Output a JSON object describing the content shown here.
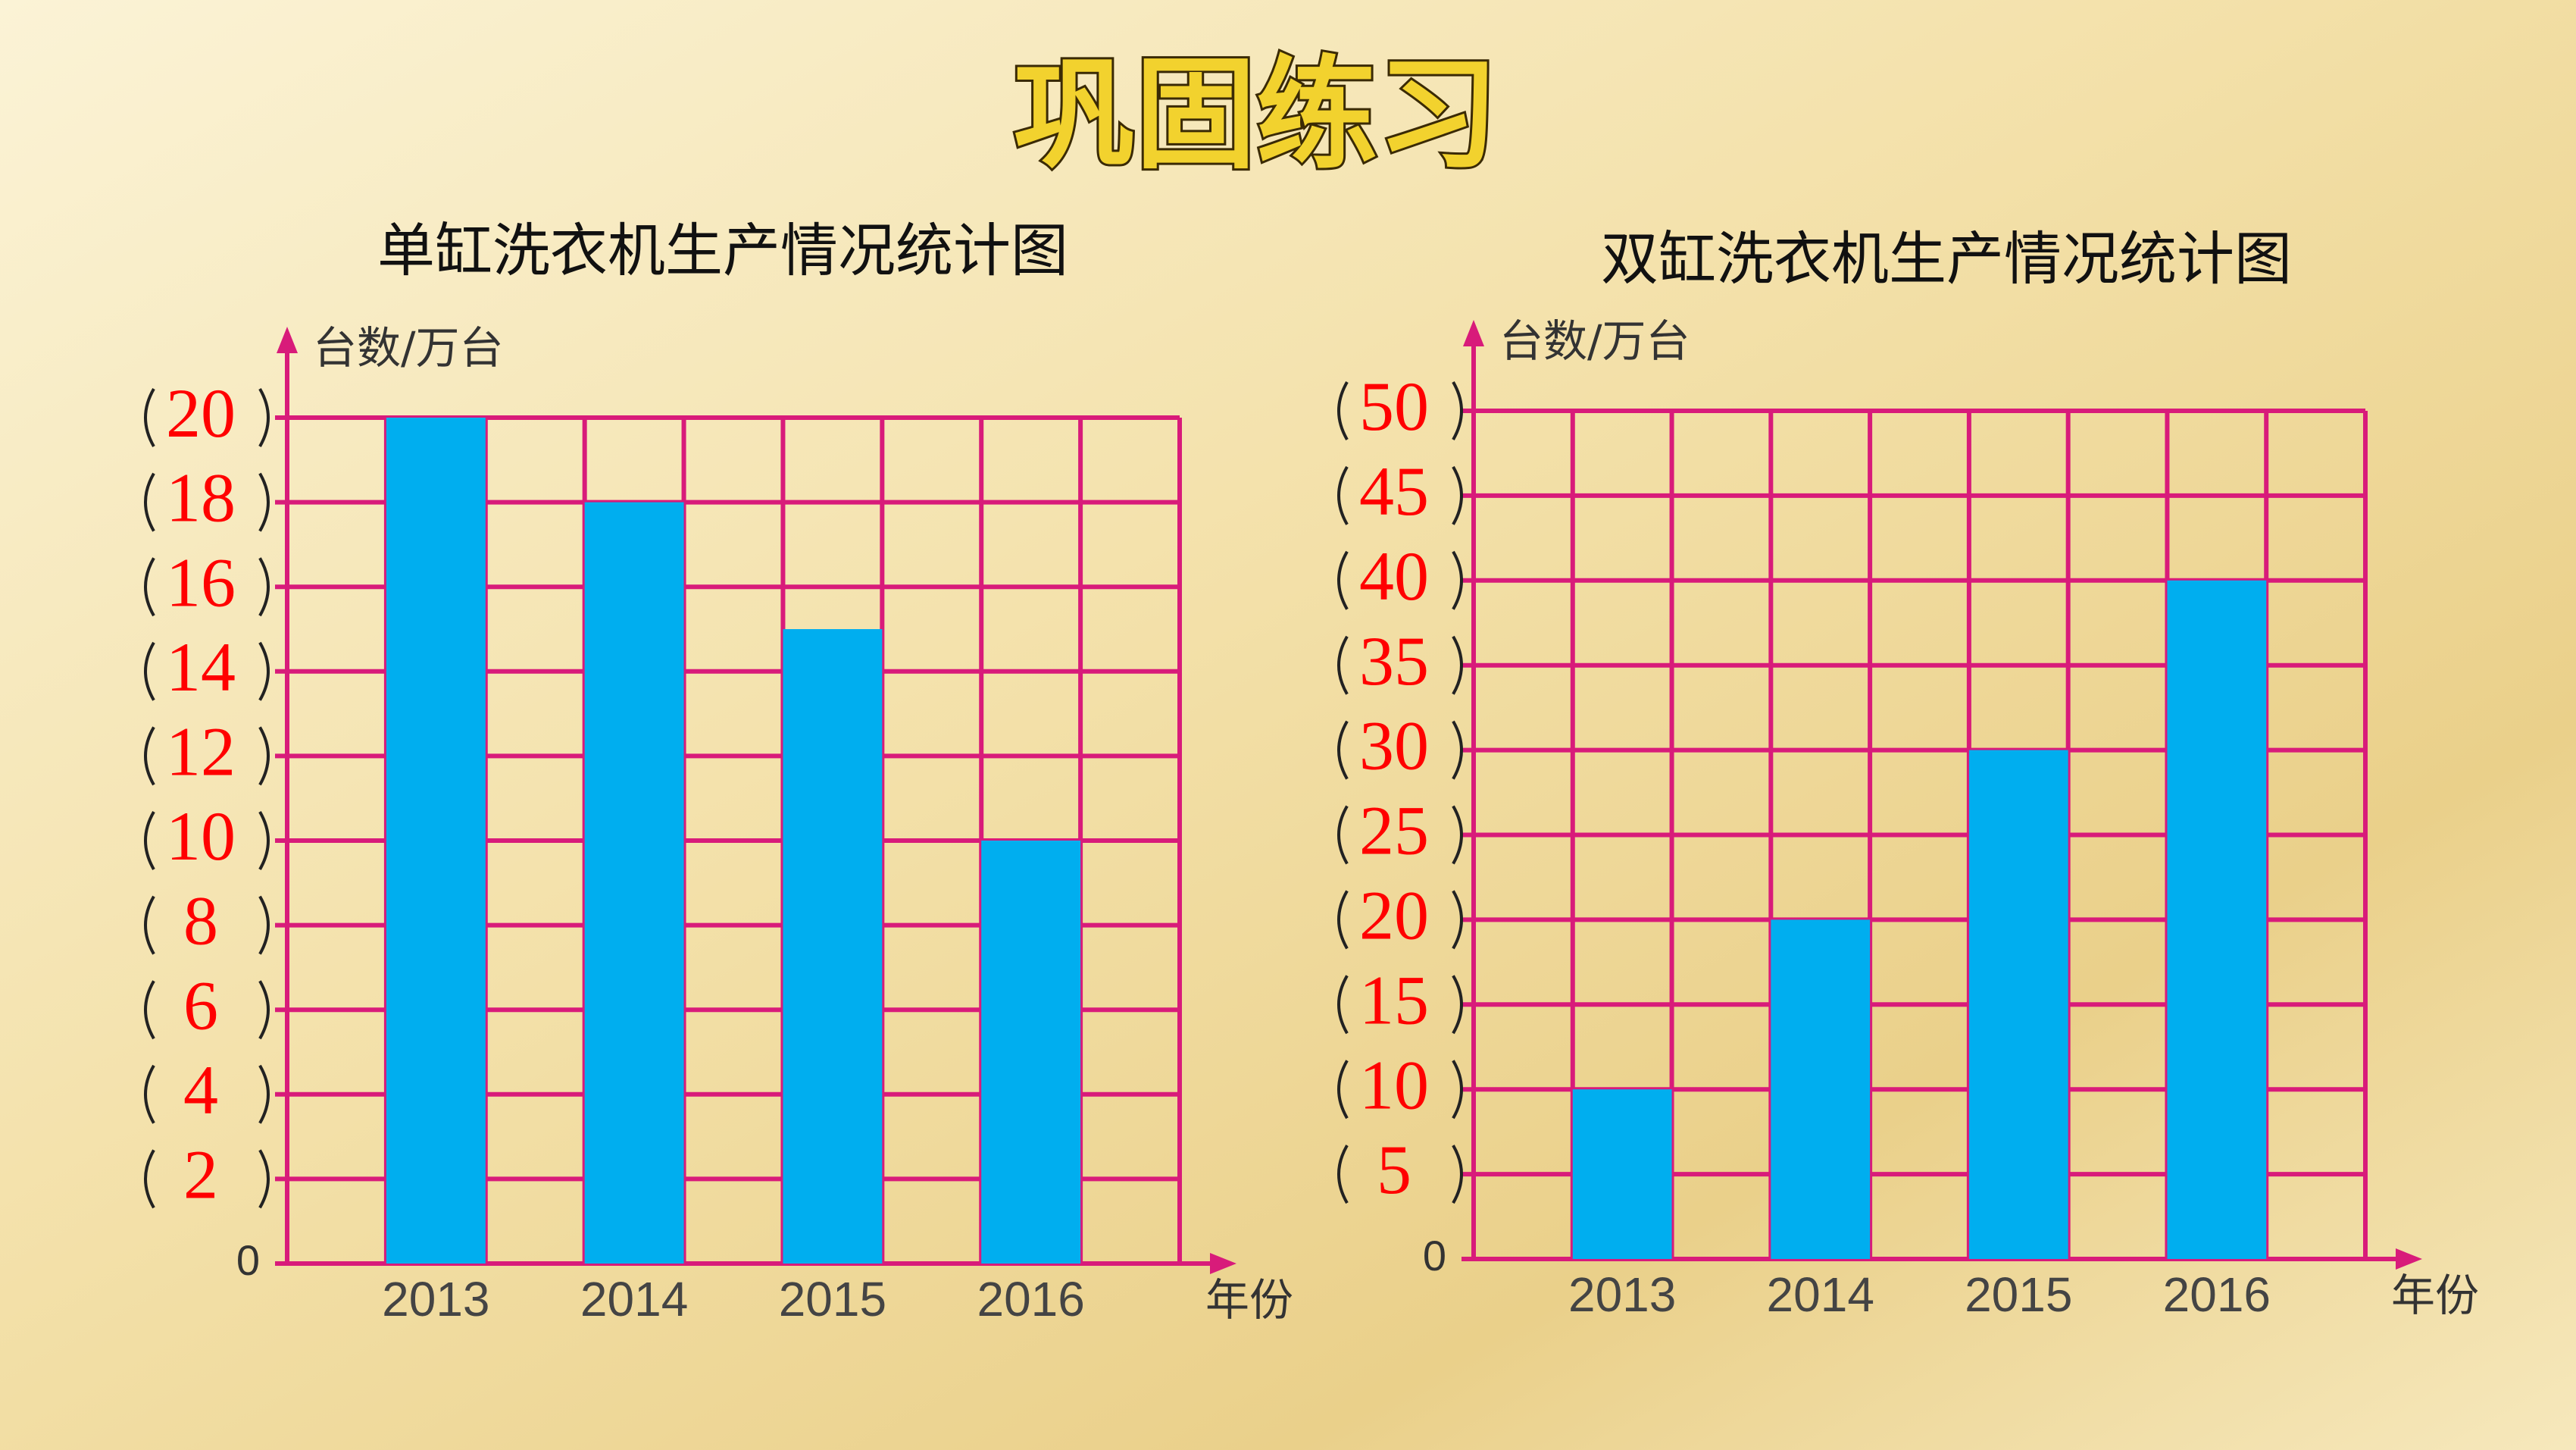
{
  "title": "巩固练习",
  "chart_data": [
    {
      "type": "bar",
      "title": "单缸洗衣机生产情况统计图",
      "y_label": "台数/万台",
      "x_label": "年份",
      "categories": [
        "2013",
        "2014",
        "2015",
        "2016"
      ],
      "values": [
        20,
        18,
        15,
        10
      ],
      "color": "#00aeef",
      "grid": true,
      "grid_color": "#d81b7a",
      "ylim": [
        0,
        20
      ],
      "yticks": [
        0,
        2,
        4,
        6,
        8,
        10,
        12,
        14,
        16,
        18,
        20
      ]
    },
    {
      "type": "bar",
      "title": "双缸洗衣机生产情况统计图",
      "y_label": "台数/万台",
      "x_label": "年份",
      "categories": [
        "2013",
        "2014",
        "2015",
        "2016"
      ],
      "values": [
        10,
        20,
        30,
        40
      ],
      "color": "#00aeef",
      "grid": true,
      "grid_color": "#d81b7a",
      "ylim": [
        0,
        50
      ],
      "yticks": [
        0,
        5,
        10,
        15,
        20,
        25,
        30,
        35,
        40,
        45,
        50
      ]
    }
  ]
}
